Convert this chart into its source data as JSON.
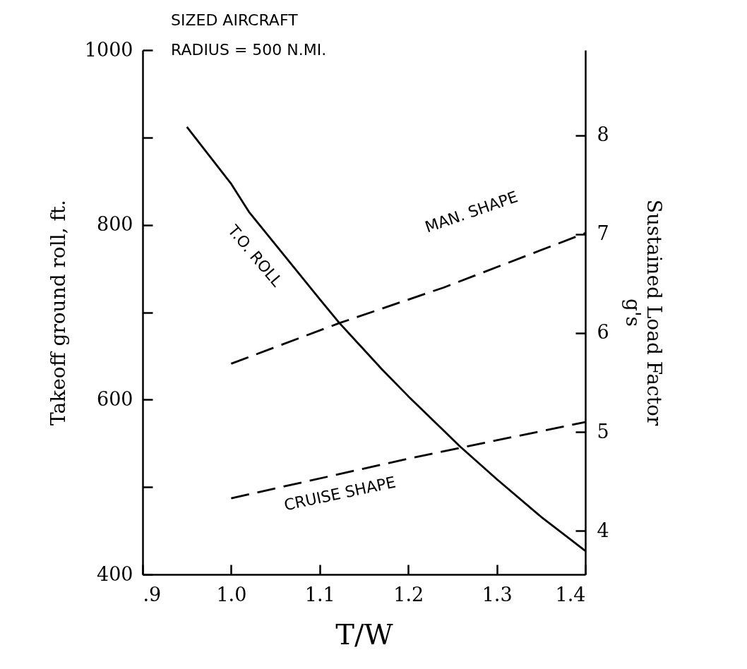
{
  "chart_data": {
    "type": "line",
    "xlabel": "T/W",
    "ylabel": "Takeoff ground roll, ft.",
    "y2label": "Sustained Load Factor\ng's",
    "annotations": [
      "SIZED AIRCRAFT",
      "RADIUS = 500 N.MI."
    ],
    "xlim": [
      0.9,
      1.4
    ],
    "xticks": [
      {
        "value": 0.9,
        "label": ".9"
      },
      {
        "value": 1.0,
        "label": "1.0"
      },
      1.1,
      1.2,
      1.3,
      1.4
    ],
    "ylim": [
      400,
      1000
    ],
    "yticks": [
      400,
      {
        "value": 500,
        "label": null
      },
      600,
      {
        "value": 700,
        "label": null
      },
      800,
      {
        "value": 900,
        "label": null
      },
      1000
    ],
    "y2lim": [
      3.56,
      8.86
    ],
    "y2ticks": [
      4,
      5,
      6,
      7,
      8
    ],
    "grid": false,
    "legend": false,
    "series": [
      {
        "name": "T.O. ROLL",
        "color": "#000000",
        "line_style": "solid",
        "x": [
          0.95,
          1.0,
          1.02,
          1.1,
          1.122,
          1.171,
          1.2,
          1.259,
          1.3,
          1.35,
          1.4
        ],
        "values": [
          912,
          847,
          815,
          715,
          688,
          634,
          604,
          546,
          509,
          466,
          427
        ]
      },
      {
        "name": "MAN. SHAPE",
        "color": "#000000",
        "line_style": "dashed",
        "axis": "y2",
        "x": [
          1.0,
          1.122,
          1.24,
          1.4
        ],
        "values": [
          5.69,
          6.1,
          6.46,
          7.01
        ]
      },
      {
        "name": "CRUISE SHAPE",
        "color": "#000000",
        "line_style": "dashed",
        "axis": "y2",
        "x": [
          1.0,
          1.2,
          1.259,
          1.4
        ],
        "values": [
          4.33,
          4.73,
          4.84,
          5.1
        ]
      }
    ]
  }
}
